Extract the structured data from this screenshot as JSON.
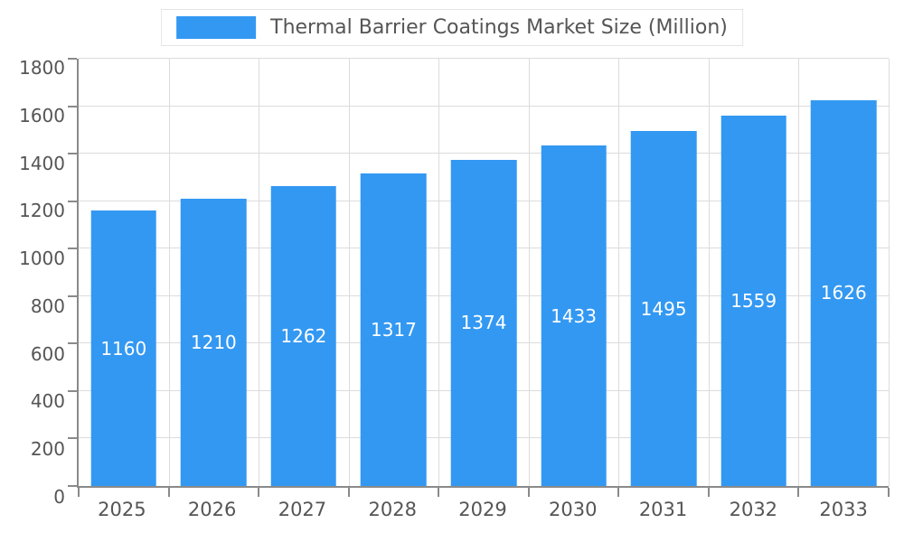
{
  "chart_data": {
    "type": "bar",
    "title": "Thermal Barrier Coatings Market Size (Million)",
    "categories": [
      "2025",
      "2026",
      "2027",
      "2028",
      "2029",
      "2030",
      "2031",
      "2032",
      "2033"
    ],
    "values": [
      1160,
      1210,
      1262,
      1317,
      1374,
      1433,
      1495,
      1559,
      1626
    ],
    "xlabel": "",
    "ylabel": "",
    "ylim": [
      0,
      1800
    ],
    "ytick_step": 200,
    "grid": true,
    "legend_position": "top",
    "colors": {
      "bar": "#3398f2",
      "bar_value_label": "#ffffff",
      "axis_line": "#8a8a8a",
      "gridline": "#dcdcdc",
      "tick_label": "#555555",
      "legend_text": "#555555",
      "background": "#ffffff"
    }
  }
}
